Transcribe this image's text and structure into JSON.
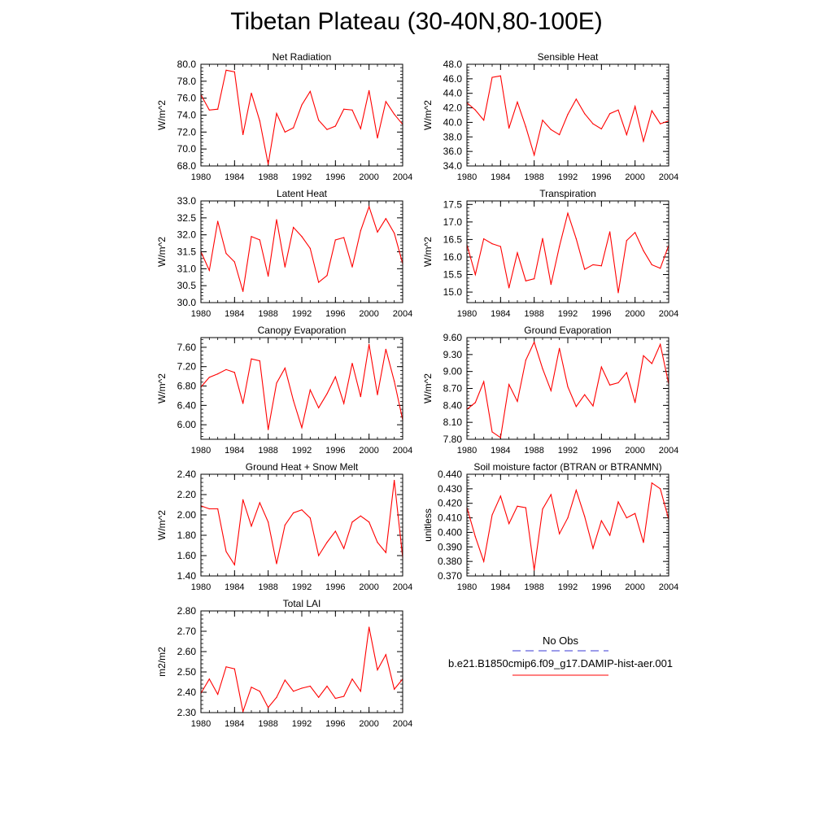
{
  "figure": {
    "title": "Tibetan Plateau (30-40N,80-100E)",
    "series_color": "#ff0000",
    "obs_color": "#3a3ad6",
    "legend": {
      "obs_label": "No Obs",
      "model_label": "b.e21.B1850cmip6.f09_g17.DAMIP-hist-aer.001"
    }
  },
  "chart_data": [
    {
      "type": "line",
      "title": "Net Radiation",
      "ylabel": "W/m^2",
      "xlabel": "",
      "xlim": [
        1980,
        2004
      ],
      "ylim": [
        68.0,
        80.0
      ],
      "yticks": [
        "68.0",
        "70.0",
        "72.0",
        "74.0",
        "76.0",
        "78.0",
        "80.0"
      ],
      "xticks": [
        "1980",
        "1984",
        "1988",
        "1992",
        "1996",
        "2000",
        "2004"
      ],
      "series": [
        {
          "x": [
            1980,
            1981,
            1982,
            1983,
            1984,
            1985,
            1986,
            1987,
            1988,
            1989,
            1990,
            1991,
            1992,
            1993,
            1994,
            1995,
            1996,
            1997,
            1998,
            1999,
            2000,
            2001,
            2002,
            2003,
            2004
          ],
          "values": [
            76.4,
            74.6,
            74.7,
            79.3,
            79.1,
            71.7,
            76.6,
            73.3,
            68.2,
            74.2,
            72.0,
            72.5,
            75.2,
            76.8,
            73.4,
            72.3,
            72.7,
            74.7,
            74.6,
            72.4,
            76.9,
            71.3,
            75.6,
            74.1,
            72.9
          ]
        }
      ]
    },
    {
      "type": "line",
      "title": "Sensible Heat",
      "ylabel": "W/m^2",
      "xlabel": "",
      "xlim": [
        1980,
        2004
      ],
      "ylim": [
        34.0,
        48.0
      ],
      "yticks": [
        "34.0",
        "36.0",
        "38.0",
        "40.0",
        "42.0",
        "44.0",
        "46.0",
        "48.0"
      ],
      "xticks": [
        "1980",
        "1984",
        "1988",
        "1992",
        "1996",
        "2000",
        "2004"
      ],
      "series": [
        {
          "x": [
            1980,
            1981,
            1982,
            1983,
            1984,
            1985,
            1986,
            1987,
            1988,
            1989,
            1990,
            1991,
            1992,
            1993,
            1994,
            1995,
            1996,
            1997,
            1998,
            1999,
            2000,
            2001,
            2002,
            2003,
            2004
          ],
          "values": [
            42.7,
            41.7,
            40.3,
            46.2,
            46.4,
            39.2,
            42.8,
            39.4,
            35.5,
            40.3,
            39.0,
            38.3,
            41.1,
            43.2,
            41.2,
            39.8,
            39.1,
            41.2,
            41.7,
            38.3,
            42.2,
            37.4,
            41.6,
            39.8,
            40.2
          ]
        }
      ]
    },
    {
      "type": "line",
      "title": "Latent Heat",
      "ylabel": "W/m^2",
      "xlabel": "",
      "xlim": [
        1980,
        2004
      ],
      "ylim": [
        30.0,
        33.0
      ],
      "yticks": [
        "30.0",
        "30.5",
        "31.0",
        "31.5",
        "32.0",
        "32.5",
        "33.0"
      ],
      "xticks": [
        "1980",
        "1984",
        "1988",
        "1992",
        "1996",
        "2000",
        "2004"
      ],
      "series": [
        {
          "x": [
            1980,
            1981,
            1982,
            1983,
            1984,
            1985,
            1986,
            1987,
            1988,
            1989,
            1990,
            1991,
            1992,
            1993,
            1994,
            1995,
            1996,
            1997,
            1998,
            1999,
            2000,
            2001,
            2002,
            2003,
            2004
          ],
          "values": [
            31.5,
            30.95,
            32.4,
            31.45,
            31.2,
            30.33,
            31.95,
            31.85,
            30.78,
            32.45,
            31.05,
            32.22,
            31.95,
            31.6,
            30.6,
            30.8,
            31.85,
            31.92,
            31.05,
            32.12,
            32.83,
            32.08,
            32.48,
            32.05,
            31.15
          ]
        }
      ]
    },
    {
      "type": "line",
      "title": "Transpiration",
      "ylabel": "W/m^2",
      "xlabel": "",
      "xlim": [
        1980,
        2004
      ],
      "ylim": [
        14.7,
        17.6
      ],
      "yticks": [
        "15.0",
        "15.5",
        "16.0",
        "16.5",
        "17.0",
        "17.5"
      ],
      "xticks": [
        "1980",
        "1984",
        "1988",
        "1992",
        "1996",
        "2000",
        "2004"
      ],
      "series": [
        {
          "x": [
            1980,
            1981,
            1982,
            1983,
            1984,
            1985,
            1986,
            1987,
            1988,
            1989,
            1990,
            1991,
            1992,
            1993,
            1994,
            1995,
            1996,
            1997,
            1998,
            1999,
            2000,
            2001,
            2002,
            2003,
            2004
          ],
          "values": [
            16.35,
            15.5,
            16.52,
            16.38,
            16.3,
            15.12,
            16.12,
            15.32,
            15.38,
            16.53,
            15.22,
            16.3,
            17.25,
            16.52,
            15.65,
            15.78,
            15.75,
            16.72,
            14.98,
            16.47,
            16.7,
            16.18,
            15.78,
            15.68,
            16.33
          ]
        }
      ]
    },
    {
      "type": "line",
      "title": "Canopy Evaporation",
      "ylabel": "W/m^2",
      "xlabel": "",
      "xlim": [
        1980,
        2004
      ],
      "ylim": [
        5.7,
        7.8
      ],
      "yticks": [
        "6.00",
        "6.40",
        "6.80",
        "7.20",
        "7.60"
      ],
      "xticks": [
        "1980",
        "1984",
        "1988",
        "1992",
        "1996",
        "2000",
        "2004"
      ],
      "series": [
        {
          "x": [
            1980,
            1981,
            1982,
            1983,
            1984,
            1985,
            1986,
            1987,
            1988,
            1989,
            1990,
            1991,
            1992,
            1993,
            1994,
            1995,
            1996,
            1997,
            1998,
            1999,
            2000,
            2001,
            2002,
            2003,
            2004
          ],
          "values": [
            6.78,
            6.98,
            7.05,
            7.14,
            7.08,
            6.44,
            7.36,
            7.32,
            5.9,
            6.86,
            7.17,
            6.5,
            5.94,
            6.72,
            6.35,
            6.64,
            6.99,
            6.44,
            7.27,
            6.58,
            7.66,
            6.62,
            7.56,
            6.9,
            6.1
          ]
        }
      ]
    },
    {
      "type": "line",
      "title": "Ground Evaporation",
      "ylabel": "W/m^2",
      "xlabel": "",
      "xlim": [
        1980,
        2004
      ],
      "ylim": [
        7.8,
        9.6
      ],
      "yticks": [
        "7.80",
        "8.10",
        "8.40",
        "8.70",
        "9.00",
        "9.30",
        "9.60"
      ],
      "xticks": [
        "1980",
        "1984",
        "1988",
        "1992",
        "1996",
        "2000",
        "2004"
      ],
      "series": [
        {
          "x": [
            1980,
            1981,
            1982,
            1983,
            1984,
            1985,
            1986,
            1987,
            1988,
            1989,
            1990,
            1991,
            1992,
            1993,
            1994,
            1995,
            1996,
            1997,
            1998,
            1999,
            2000,
            2001,
            2002,
            2003,
            2004
          ],
          "values": [
            8.33,
            8.45,
            8.82,
            7.93,
            7.83,
            8.77,
            8.47,
            9.2,
            9.52,
            9.05,
            8.66,
            9.41,
            8.73,
            8.38,
            8.59,
            8.39,
            9.08,
            8.76,
            8.8,
            8.98,
            8.45,
            9.28,
            9.14,
            9.48,
            8.78
          ]
        }
      ]
    },
    {
      "type": "line",
      "title": "Ground Heat + Snow Melt",
      "ylabel": "W/m^2",
      "xlabel": "",
      "xlim": [
        1980,
        2004
      ],
      "ylim": [
        1.4,
        2.4
      ],
      "yticks": [
        "1.40",
        "1.60",
        "1.80",
        "2.00",
        "2.20",
        "2.40"
      ],
      "xticks": [
        "1980",
        "1984",
        "1988",
        "1992",
        "1996",
        "2000",
        "2004"
      ],
      "series": [
        {
          "x": [
            1980,
            1981,
            1982,
            1983,
            1984,
            1985,
            1986,
            1987,
            1988,
            1989,
            1990,
            1991,
            1992,
            1993,
            1994,
            1995,
            1996,
            1997,
            1998,
            1999,
            2000,
            2001,
            2002,
            2003,
            2004
          ],
          "values": [
            2.09,
            2.06,
            2.06,
            1.64,
            1.51,
            2.15,
            1.89,
            2.12,
            1.93,
            1.52,
            1.9,
            2.02,
            2.05,
            1.97,
            1.6,
            1.73,
            1.84,
            1.67,
            1.93,
            1.99,
            1.93,
            1.73,
            1.63,
            2.34,
            1.58
          ]
        }
      ]
    },
    {
      "type": "line",
      "title": "Soil moisture factor (BTRAN or BTRANMN)",
      "ylabel": "unitless",
      "xlabel": "",
      "xlim": [
        1980,
        2004
      ],
      "ylim": [
        0.37,
        0.44
      ],
      "yticks": [
        "0.370",
        "0.380",
        "0.390",
        "0.400",
        "0.410",
        "0.420",
        "0.430",
        "0.440"
      ],
      "xticks": [
        "1980",
        "1984",
        "1988",
        "1992",
        "1996",
        "2000",
        "2004"
      ],
      "series": [
        {
          "x": [
            1980,
            1981,
            1982,
            1983,
            1984,
            1985,
            1986,
            1987,
            1988,
            1989,
            1990,
            1991,
            1992,
            1993,
            1994,
            1995,
            1996,
            1997,
            1998,
            1999,
            2000,
            2001,
            2002,
            2003,
            2004
          ],
          "values": [
            0.417,
            0.397,
            0.38,
            0.412,
            0.425,
            0.406,
            0.418,
            0.417,
            0.374,
            0.416,
            0.426,
            0.399,
            0.41,
            0.429,
            0.411,
            0.389,
            0.408,
            0.398,
            0.421,
            0.41,
            0.413,
            0.393,
            0.434,
            0.43,
            0.409
          ]
        }
      ]
    },
    {
      "type": "line",
      "title": "Total LAI",
      "ylabel": "m2/m2",
      "xlabel": "",
      "xlim": [
        1980,
        2004
      ],
      "ylim": [
        2.3,
        2.8
      ],
      "yticks": [
        "2.30",
        "2.40",
        "2.50",
        "2.60",
        "2.70",
        "2.80"
      ],
      "xticks": [
        "1980",
        "1984",
        "1988",
        "1992",
        "1996",
        "2000",
        "2004"
      ],
      "series": [
        {
          "x": [
            1980,
            1981,
            1982,
            1983,
            1984,
            1985,
            1986,
            1987,
            1988,
            1989,
            1990,
            1991,
            1992,
            1993,
            1994,
            1995,
            1996,
            1997,
            1998,
            1999,
            2000,
            2001,
            2002,
            2003,
            2004
          ],
          "values": [
            2.395,
            2.465,
            2.39,
            2.525,
            2.515,
            2.305,
            2.425,
            2.405,
            2.325,
            2.375,
            2.46,
            2.405,
            2.42,
            2.43,
            2.375,
            2.43,
            2.37,
            2.38,
            2.465,
            2.405,
            2.72,
            2.51,
            2.585,
            2.415,
            2.465
          ]
        }
      ]
    }
  ]
}
